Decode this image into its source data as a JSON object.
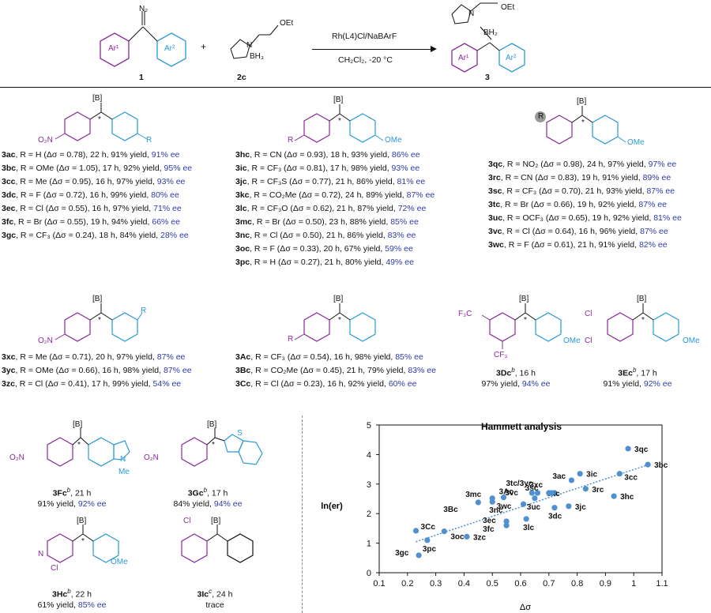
{
  "scheme": {
    "reagent_a": {
      "n2": "N₂",
      "ar1": "Ar¹",
      "ar2": "Ar²",
      "label": "1"
    },
    "plus": "+",
    "reagent_b": {
      "oet": "OEt",
      "n": "N",
      "bh3": "BH₃",
      "label": "2c"
    },
    "conditions_top": "Rh(L4)Cl/NaBArF",
    "conditions_bottom": "CH₂Cl₂, -20 °C",
    "product": {
      "oet": "OEt",
      "n": "N",
      "bh2": "BH₂",
      "ar1": "Ar¹",
      "ar2": "Ar²",
      "label": "3"
    }
  },
  "common": {
    "b": "[B]",
    "star": "*",
    "ome": "OMe",
    "no2": "O₂N",
    "r": "R",
    "cf3": "F₃C",
    "cf3b": "CF₃",
    "cl": "Cl",
    "me": "Me",
    "n": "N",
    "s": "S"
  },
  "groups": [
    {
      "rows": [
        {
          "id": "3ac",
          "text": ", R = H (Δσ = 0.78), 22 h, 91% yield, ",
          "ee": "91% ee"
        },
        {
          "id": "3bc",
          "text": ", R = OMe (Δσ = 1.05), 17 h, 92% yield, ",
          "ee": "95% ee"
        },
        {
          "id": "3cc",
          "text": ", R = Me (Δσ = 0.95), 16 h, 97% yield, ",
          "ee": "93% ee"
        },
        {
          "id": "3dc",
          "text": ", R = F (Δσ = 0.72), 16 h, 99% yield, ",
          "ee": "80% ee"
        },
        {
          "id": "3ec",
          "text": ", R = Cl (Δσ = 0.55), 16 h, 97% yield, ",
          "ee": "71% ee"
        },
        {
          "id": "3fc",
          "text": ", R = Br (Δσ = 0.55), 19 h, 94% yield, ",
          "ee": "66% ee"
        },
        {
          "id": "3gc",
          "text": ", R = CF₃ (Δσ = 0.24), 18 h, 84% yield, ",
          "ee": "28% ee"
        }
      ]
    },
    {
      "rows": [
        {
          "id": "3hc",
          "text": ", R = CN (Δσ = 0.93), 18 h, 93% yield, ",
          "ee": "86% ee"
        },
        {
          "id": "3ic",
          "text": ", R = CF₃ (Δσ = 0.81), 17 h, 98% yield, ",
          "ee": "93% ee"
        },
        {
          "id": "3jc",
          "text": ", R = CF₃S (Δσ = 0.77), 21 h, 86% yield, ",
          "ee": "81% ee"
        },
        {
          "id": "3kc",
          "text": ", R = CO₂Me (Δσ = 0.72), 24 h, 89% yield, ",
          "ee": "87% ee"
        },
        {
          "id": "3lc",
          "text": ", R = CF₃O (Δσ = 0.62), 21 h, 87% yield, ",
          "ee": "72% ee"
        },
        {
          "id": "3mc",
          "text": ", R = Br (Δσ = 0.50), 23 h, 88% yield, ",
          "ee": "85% ee"
        },
        {
          "id": "3nc",
          "text": ", R = Cl (Δσ = 0.50), 21 h, 86% yield, ",
          "ee": "83% ee"
        },
        {
          "id": "3oc",
          "text": ", R = F (Δσ = 0.33), 20 h, 67% yield, ",
          "ee": "59% ee"
        },
        {
          "id": "3pc",
          "text": ", R = H (Δσ = 0.27), 21 h, 80% yield, ",
          "ee": "49% ee"
        }
      ]
    },
    {
      "rows": [
        {
          "id": "3qc",
          "text": ", R = NO₂ (Δσ = 0.98), 24 h, 97% yield, ",
          "ee": "97% ee"
        },
        {
          "id": "3rc",
          "text": ", R = CN (Δσ = 0.83), 19 h, 91% yield, ",
          "ee": "89% ee"
        },
        {
          "id": "3sc",
          "text": ", R = CF₃ (Δσ = 0.70), 21 h, 93% yield, ",
          "ee": "87% ee"
        },
        {
          "id": "3tc",
          "text": ", R = Br (Δσ = 0.66), 19 h, 92% yield, ",
          "ee": "87% ee"
        },
        {
          "id": "3uc",
          "text": ", R = OCF₃ (Δσ = 0.65), 19 h, 92% yield, ",
          "ee": "81% ee"
        },
        {
          "id": "3vc",
          "text": ", R = Cl (Δσ = 0.64), 16 h, 96% yield, ",
          "ee": "87% ee"
        },
        {
          "id": "3wc",
          "text": ", R = F (Δσ = 0.61), 21 h, 91% yield, ",
          "ee": "82% ee"
        }
      ]
    },
    {
      "rows": [
        {
          "id": "3xc",
          "text": ", R = Me (Δσ = 0.71), 20 h, 97% yield, ",
          "ee": "87% ee"
        },
        {
          "id": "3yc",
          "text": ", R = OMe (Δσ = 0.66), 16 h, 98% yield, ",
          "ee": "87% ee"
        },
        {
          "id": "3zc",
          "text": ", R = Cl (Δσ = 0.41), 17 h, 99% yield, ",
          "ee": "54% ee"
        }
      ]
    },
    {
      "rows": [
        {
          "id": "3Ac",
          "text": ", R = CF₃ (Δσ = 0.54), 16 h, 98% yield, ",
          "ee": "85% ee"
        },
        {
          "id": "3Bc",
          "text": ", R = CO₂Me (Δσ = 0.45), 21 h, 79% yield, ",
          "ee": "83% ee"
        },
        {
          "id": "3Cc",
          "text": ", R = Cl (Δσ = 0.23), 16 h, 92% yield, ",
          "ee": "60% ee"
        }
      ]
    }
  ],
  "singles": {
    "3Dc": {
      "id": "3Dc",
      "sup": "b",
      "time": ", 16 h",
      "yield": "97% yield, ",
      "ee": "94% ee"
    },
    "3Ec": {
      "id": "3Ec",
      "sup": "b",
      "time": ", 17 h",
      "yield": "91% yield, ",
      "ee": "92% ee"
    },
    "3Fc": {
      "id": "3Fc",
      "sup": "b",
      "time": ", 21 h",
      "yield": "91% yield, ",
      "ee": "92% ee"
    },
    "3Gc": {
      "id": "3Gc",
      "sup": "b",
      "time": ", 17 h",
      "yield": "84% yield, ",
      "ee": "94% ee"
    },
    "3Hc": {
      "id": "3Hc",
      "sup": "b",
      "time": ", 22 h",
      "yield": "61% yield, ",
      "ee": "85% ee"
    },
    "3Ic": {
      "id": "3Ic",
      "sup": "c",
      "time": ", 24 h",
      "yield": "trace",
      "ee": ""
    }
  },
  "chart_data": {
    "type": "scatter",
    "title": "Hammett analysis",
    "xlabel": "Δσ",
    "ylabel": "ln(er)",
    "xlim": [
      0.1,
      1.1
    ],
    "ylim": [
      0,
      5
    ],
    "xticks": [
      "0.1",
      "0.2",
      "0.3",
      "0.4",
      "0.5",
      "0.6",
      "0.7",
      "0.8",
      "0.9",
      "1",
      "1.1"
    ],
    "yticks": [
      "0",
      "1",
      "2",
      "3",
      "4",
      "5"
    ],
    "trendline": {
      "style": "dotted",
      "x": [
        0.23,
        1.05
      ],
      "y": [
        1.05,
        3.65
      ]
    },
    "points": [
      {
        "label": "3qc",
        "x": 0.98,
        "y": 4.2
      },
      {
        "label": "3bc",
        "x": 1.05,
        "y": 3.66
      },
      {
        "label": "3cc",
        "x": 0.95,
        "y": 3.35
      },
      {
        "label": "3ac",
        "x": 0.78,
        "y": 3.13
      },
      {
        "label": "3ic",
        "x": 0.81,
        "y": 3.35
      },
      {
        "label": "3hc",
        "x": 0.93,
        "y": 2.59
      },
      {
        "label": "3rc",
        "x": 0.83,
        "y": 2.84
      },
      {
        "label": "3jc",
        "x": 0.77,
        "y": 2.25
      },
      {
        "label": "3dc",
        "x": 0.72,
        "y": 2.2
      },
      {
        "label": "3kc",
        "x": 0.72,
        "y": 2.7
      },
      {
        "label": "3xc",
        "x": 0.71,
        "y": 2.7
      },
      {
        "label": "3sc",
        "x": 0.7,
        "y": 2.7
      },
      {
        "label": "3tc/3yc",
        "x": 0.66,
        "y": 2.7
      },
      {
        "label": "3uc",
        "x": 0.65,
        "y": 2.52
      },
      {
        "label": "3vc",
        "x": 0.64,
        "y": 2.7
      },
      {
        "label": "3lc",
        "x": 0.62,
        "y": 1.82
      },
      {
        "label": "3wc",
        "x": 0.61,
        "y": 2.32
      },
      {
        "label": "3ec",
        "x": 0.55,
        "y": 1.74
      },
      {
        "label": "3fc",
        "x": 0.55,
        "y": 1.6
      },
      {
        "label": "3Ac",
        "x": 0.54,
        "y": 2.55
      },
      {
        "label": "3mc",
        "x": 0.5,
        "y": 2.52
      },
      {
        "label": "3nc",
        "x": 0.5,
        "y": 2.4
      },
      {
        "label": "3Bc",
        "x": 0.45,
        "y": 2.38
      },
      {
        "label": "3zc",
        "x": 0.41,
        "y": 1.22
      },
      {
        "label": "3oc",
        "x": 0.33,
        "y": 1.4
      },
      {
        "label": "3pc",
        "x": 0.27,
        "y": 1.1
      },
      {
        "label": "3gc",
        "x": 0.24,
        "y": 0.59
      },
      {
        "label": "3Cc",
        "x": 0.23,
        "y": 1.42
      }
    ]
  }
}
